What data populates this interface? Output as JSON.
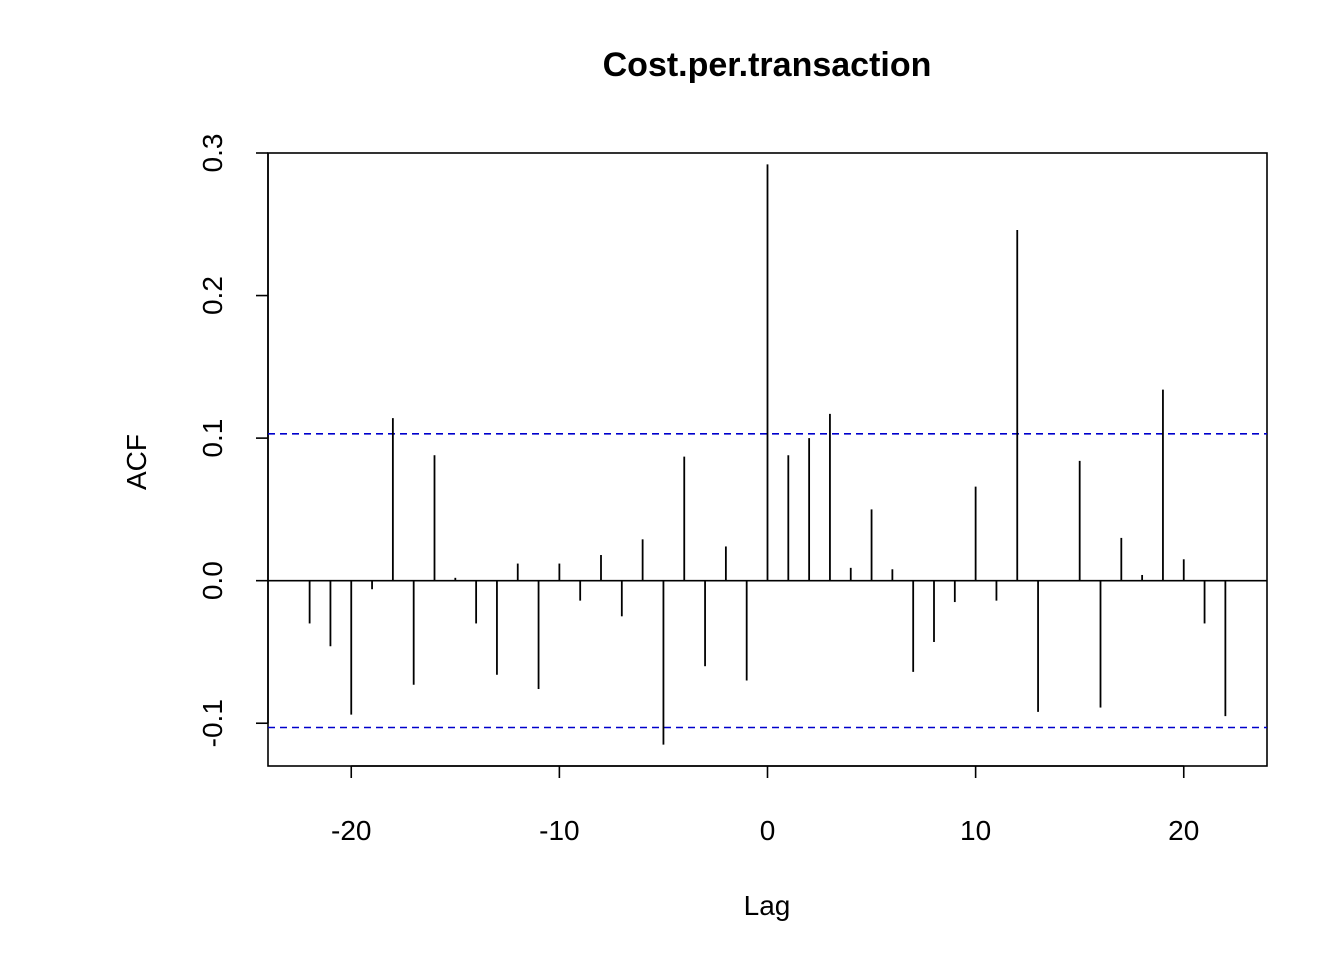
{
  "chart_data": {
    "type": "bar",
    "subtype": "acf-lag-spikes",
    "title": "Cost.per.transaction",
    "xlabel": "Lag",
    "ylabel": "ACF",
    "xlim": [
      -24,
      24
    ],
    "ylim": [
      -0.13,
      0.3
    ],
    "x_ticks": [
      -20,
      -10,
      0,
      10,
      20
    ],
    "x_tick_labels": [
      "-20",
      "-10",
      "0",
      "10",
      "20"
    ],
    "y_ticks": [
      -0.1,
      0.0,
      0.1,
      0.2,
      0.3
    ],
    "y_tick_labels": [
      "-0.1",
      "0.0",
      "0.1",
      "0.2",
      "0.3"
    ],
    "grid": false,
    "confidence_bounds": [
      0.103,
      -0.103
    ],
    "confidence_color": "#0000cc",
    "series": [
      {
        "x": [
          -22,
          -21,
          -20,
          -19,
          -18,
          -17,
          -16,
          -15,
          -14,
          -13,
          -12,
          -11,
          -10,
          -9,
          -8,
          -7,
          -6,
          -5,
          -4,
          -3,
          -2,
          -1,
          0,
          1,
          2,
          3,
          4,
          5,
          6,
          7,
          8,
          9,
          10,
          11,
          12,
          13,
          14,
          15,
          16,
          17,
          18,
          19,
          20,
          21,
          22
        ],
        "values": [
          -0.03,
          -0.046,
          -0.094,
          -0.006,
          0.114,
          -0.073,
          0.088,
          0.002,
          -0.03,
          -0.066,
          0.012,
          -0.076,
          0.012,
          -0.014,
          0.018,
          -0.025,
          0.029,
          -0.115,
          0.087,
          -0.06,
          0.024,
          -0.07,
          0.292,
          0.088,
          0.1,
          0.117,
          0.009,
          0.05,
          0.008,
          -0.064,
          -0.043,
          -0.015,
          0.066,
          -0.014,
          0.246,
          -0.092,
          0.0,
          0.084,
          -0.089,
          0.03,
          0.004,
          0.134,
          0.015,
          -0.03,
          -0.095
        ]
      }
    ]
  }
}
